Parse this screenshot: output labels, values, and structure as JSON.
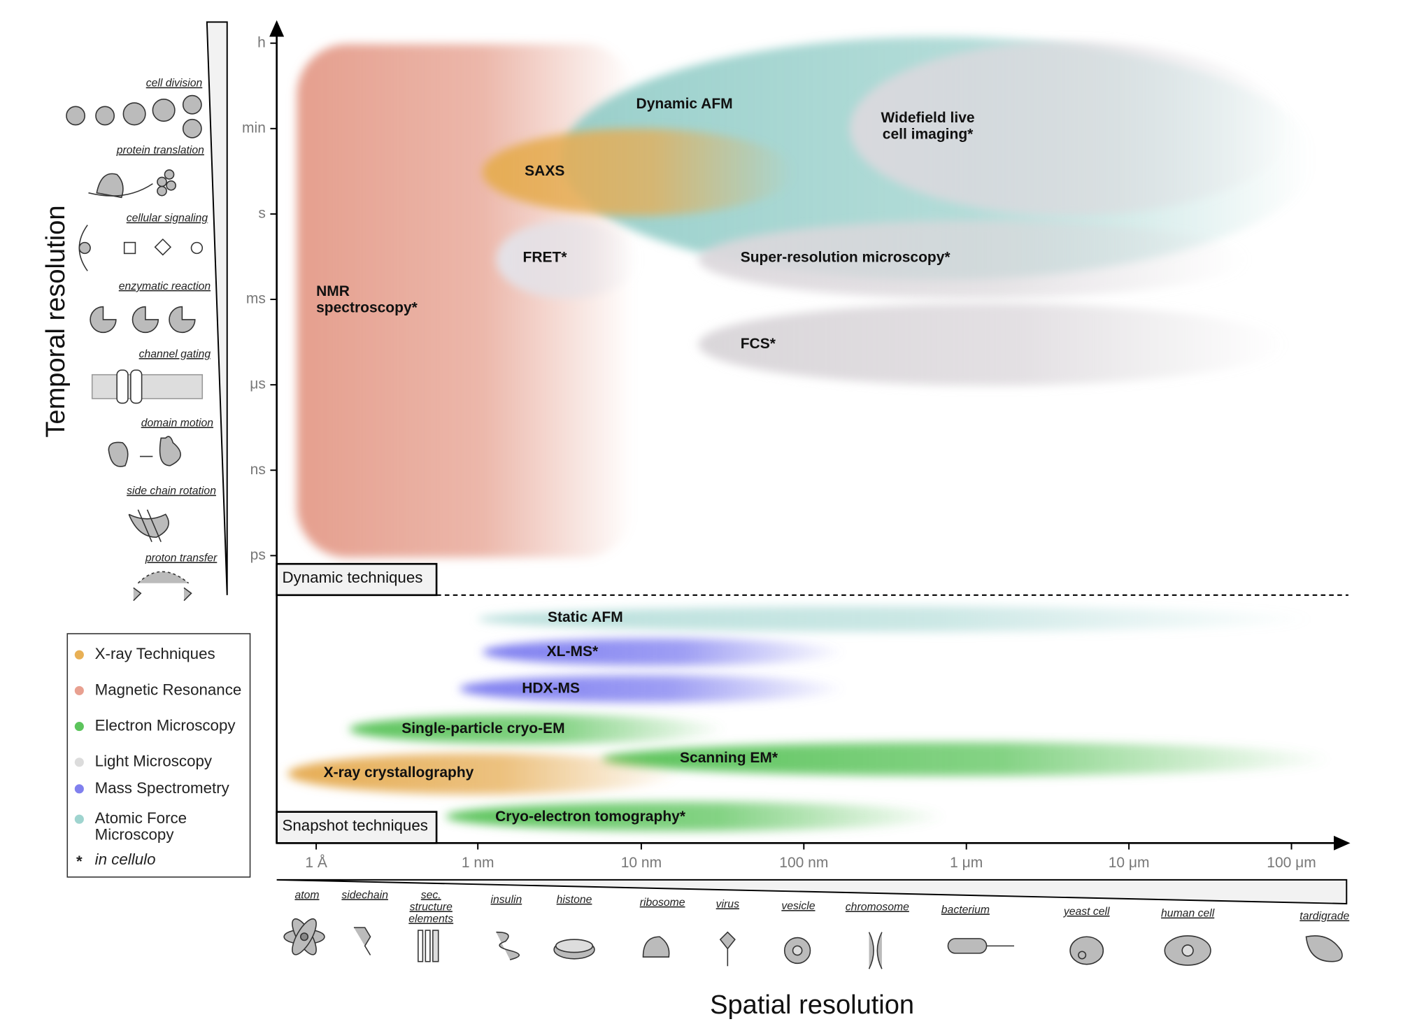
{
  "y_axis": {
    "title": "Temporal resolution",
    "ticks": [
      "h",
      "min",
      "s",
      "ms",
      "μs",
      "ns",
      "ps"
    ]
  },
  "x_axis": {
    "title": "Spatial resolution",
    "ticks": [
      "1 Å",
      "1 nm",
      "10 nm",
      "100 nm",
      "1 μm",
      "10 μm",
      "100 μm"
    ]
  },
  "processes": [
    "cell division",
    "protein translation",
    "cellular signaling",
    "enzymatic reaction",
    "channel gating",
    "domain motion",
    "side chain rotation",
    "proton transfer"
  ],
  "objects": [
    {
      "lines": [
        "atom"
      ]
    },
    {
      "lines": [
        "sidechain"
      ]
    },
    {
      "lines": [
        "sec.",
        "structure",
        "elements"
      ]
    },
    {
      "lines": [
        "insulin"
      ]
    },
    {
      "lines": [
        "histone"
      ]
    },
    {
      "lines": [
        "ribosome"
      ]
    },
    {
      "lines": [
        "virus"
      ]
    },
    {
      "lines": [
        "vesicle"
      ]
    },
    {
      "lines": [
        "chromosome"
      ]
    },
    {
      "lines": [
        "bacterium"
      ]
    },
    {
      "lines": [
        "yeast cell"
      ]
    },
    {
      "lines": [
        "human cell"
      ]
    },
    {
      "lines": [
        "tardigrade"
      ]
    }
  ],
  "sections": [
    "Dynamic techniques",
    "Snapshot techniques"
  ],
  "techniques": [
    {
      "lines": [
        "NMR",
        "spectroscopy*"
      ],
      "color": "#e49a88"
    },
    {
      "lines": [
        "Dynamic AFM"
      ],
      "color": "#8fcbc6"
    },
    {
      "lines": [
        "Widefield live",
        "cell imaging*"
      ],
      "color": "#ddd9de"
    },
    {
      "lines": [
        "SAXS"
      ],
      "color": "#e6ad55"
    },
    {
      "lines": [
        "FRET*"
      ],
      "color": "#e4e2e8"
    },
    {
      "lines": [
        "Super-resolution microscopy*"
      ],
      "color": "#dcd8dc"
    },
    {
      "lines": [
        "FCS*"
      ],
      "color": "#d8d4d8"
    },
    {
      "lines": [
        "Static AFM"
      ],
      "color": "#a9d8d4"
    },
    {
      "lines": [
        "XL-MS*"
      ],
      "color": "#7e7ef0"
    },
    {
      "lines": [
        "HDX-MS"
      ],
      "color": "#7e7ef0"
    },
    {
      "lines": [
        "Single-particle cryo-EM"
      ],
      "color": "#5cc45c"
    },
    {
      "lines": [
        "Scanning EM*"
      ],
      "color": "#5cc45c"
    },
    {
      "lines": [
        "X-ray crystallography"
      ],
      "color": "#e6ad55"
    },
    {
      "lines": [
        "Cryo-electron tomography*"
      ],
      "color": "#5cc45c"
    }
  ],
  "legend": [
    {
      "lines": [
        "X-ray Techniques"
      ],
      "color": "#e8b055"
    },
    {
      "lines": [
        "Magnetic Resonance"
      ],
      "color": "#e8a090"
    },
    {
      "lines": [
        "Electron Microscopy"
      ],
      "color": "#5cc45c"
    },
    {
      "lines": [
        "Light Microscopy"
      ],
      "color": "#dcdcdc"
    },
    {
      "lines": [
        "Mass Spectrometry"
      ],
      "color": "#8080ee"
    },
    {
      "lines": [
        "Atomic Force",
        "Microscopy"
      ],
      "color": "#9fd4cf"
    },
    {
      "marker": "*",
      "lines": [
        "in cellulo"
      ]
    }
  ]
}
